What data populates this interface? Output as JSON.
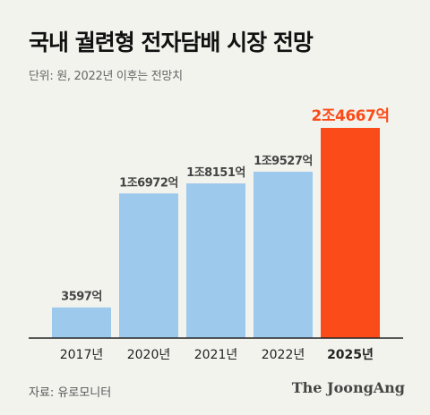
{
  "title": "국내 궐련형 전자담배 시장 전망",
  "unit_note": "단위: 원, 2022년 이후는 전망치",
  "source": "자료: 유로모니터",
  "brand": "The JoongAng",
  "colors": {
    "bar": "#9dc9ec",
    "highlight": "#fb4b18",
    "label": "#444444",
    "axis": "#222222"
  },
  "chart_data": {
    "type": "bar",
    "categories": [
      "2017년",
      "2020년",
      "2021년",
      "2022년",
      "2025년"
    ],
    "values": [
      3597,
      16972,
      18151,
      19527,
      24667
    ],
    "value_labels": [
      "3597억",
      "1조6972억",
      "1조8151억",
      "1조9527억",
      "2조4667억"
    ],
    "highlight_index": 4,
    "ylim": [
      0,
      24667
    ]
  }
}
